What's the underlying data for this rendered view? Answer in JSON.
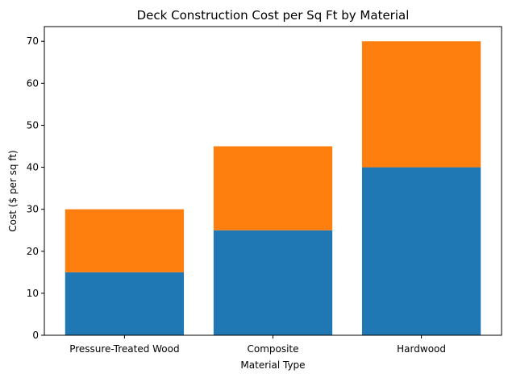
{
  "chart_data": {
    "type": "bar",
    "stacked": true,
    "title": "Deck Construction Cost per Sq Ft by Material",
    "xlabel": "Material Type",
    "ylabel": "Cost ($ per sq ft)",
    "categories": [
      "Pressure-Treated Wood",
      "Composite",
      "Hardwood"
    ],
    "series": [
      {
        "values": [
          15,
          25,
          40
        ],
        "color": "#1f77b4"
      },
      {
        "values": [
          15,
          20,
          30
        ],
        "color": "#ff7f0e"
      }
    ],
    "ylim": [
      0,
      73.5
    ],
    "yticks": [
      0,
      10,
      20,
      30,
      40,
      50,
      60,
      70
    ],
    "grid": false,
    "legend": "none"
  }
}
